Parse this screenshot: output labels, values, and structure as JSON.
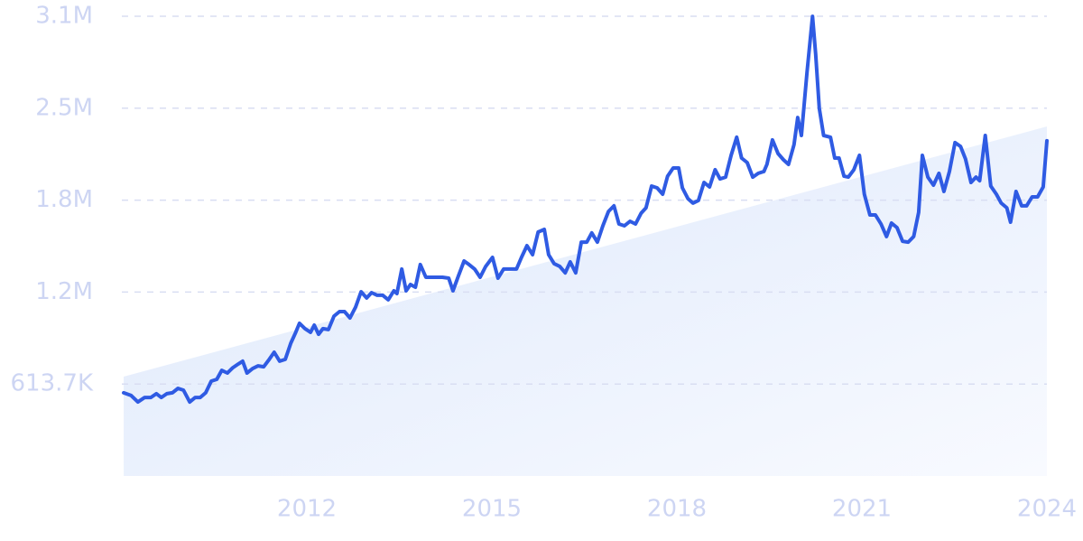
{
  "chart_data": {
    "type": "line",
    "color": "#2f5be3",
    "grid": true,
    "xlim": [
      2009,
      2024
    ],
    "xticks": [
      2012,
      2015,
      2018,
      2021,
      2024
    ],
    "ylim": [
      0,
      3068500
    ],
    "yticks": [
      {
        "value": 613700,
        "label": "613.7K"
      },
      {
        "value": 1227400,
        "label": "1.2M"
      },
      {
        "value": 1841100,
        "label": "1.8M"
      },
      {
        "value": 2454800,
        "label": "2.5M"
      },
      {
        "value": 3068500,
        "label": "3.1M"
      }
    ],
    "trend": {
      "color": "#dde8fb",
      "x": [
        2009.03,
        2024.0
      ],
      "values": [
        663000,
        2333000
      ]
    },
    "x": [
      2009.03,
      2009.15,
      2009.26,
      2009.37,
      2009.47,
      2009.56,
      2009.64,
      2009.73,
      2009.82,
      2009.91,
      2010.0,
      2010.1,
      2010.19,
      2010.27,
      2010.36,
      2010.45,
      2010.54,
      2010.62,
      2010.71,
      2010.8,
      2010.89,
      2010.96,
      2011.03,
      2011.12,
      2011.21,
      2011.3,
      2011.39,
      2011.47,
      2011.56,
      2011.65,
      2011.74,
      2011.82,
      2011.88,
      2011.97,
      2012.06,
      2012.12,
      2012.19,
      2012.26,
      2012.35,
      2012.44,
      2012.53,
      2012.61,
      2012.7,
      2012.79,
      2012.88,
      2012.97,
      2013.05,
      2013.14,
      2013.23,
      2013.32,
      2013.41,
      2013.46,
      2013.54,
      2013.61,
      2013.68,
      2013.76,
      2013.84,
      2013.93,
      2014.05,
      2014.2,
      2014.3,
      2014.37,
      2014.46,
      2014.55,
      2014.63,
      2014.72,
      2014.81,
      2014.9,
      2015.01,
      2015.1,
      2015.19,
      2015.31,
      2015.4,
      2015.48,
      2015.57,
      2015.66,
      2015.75,
      2015.85,
      2015.92,
      2016.01,
      2016.1,
      2016.19,
      2016.27,
      2016.36,
      2016.45,
      2016.54,
      2016.62,
      2016.71,
      2016.8,
      2016.89,
      2016.98,
      2017.06,
      2017.15,
      2017.24,
      2017.33,
      2017.42,
      2017.5,
      2017.59,
      2017.68,
      2017.77,
      2017.85,
      2017.94,
      2018.03,
      2018.09,
      2018.18,
      2018.26,
      2018.35,
      2018.44,
      2018.53,
      2018.62,
      2018.7,
      2018.79,
      2018.88,
      2018.97,
      2019.05,
      2019.14,
      2019.23,
      2019.32,
      2019.41,
      2019.46,
      2019.55,
      2019.64,
      2019.73,
      2019.81,
      2019.9,
      2019.96,
      2020.02,
      2020.11,
      2020.2,
      2020.25,
      2020.31,
      2020.38,
      2020.49,
      2020.56,
      2020.63,
      2020.71,
      2020.78,
      2020.87,
      2020.96,
      2021.04,
      2021.13,
      2021.22,
      2021.31,
      2021.4,
      2021.48,
      2021.57,
      2021.66,
      2021.75,
      2021.84,
      2021.92,
      2021.98,
      2022.07,
      2022.16,
      2022.25,
      2022.33,
      2022.42,
      2022.51,
      2022.6,
      2022.68,
      2022.77,
      2022.85,
      2022.91,
      2023.0,
      2023.09,
      2023.18,
      2023.26,
      2023.35,
      2023.41,
      2023.5,
      2023.59,
      2023.67,
      2023.76,
      2023.85,
      2023.94,
      2024.0
    ],
    "values": [
      555000,
      537000,
      494000,
      524000,
      524000,
      549000,
      524000,
      549000,
      555000,
      585000,
      573000,
      494000,
      524000,
      524000,
      555000,
      633000,
      645000,
      705000,
      687000,
      723000,
      748000,
      766000,
      687000,
      717000,
      735000,
      729000,
      778000,
      826000,
      766000,
      778000,
      886000,
      959000,
      1019000,
      983000,
      959000,
      1007000,
      946000,
      983000,
      977000,
      1067000,
      1097000,
      1097000,
      1055000,
      1127000,
      1230000,
      1188000,
      1224000,
      1206000,
      1206000,
      1176000,
      1236000,
      1218000,
      1381000,
      1236000,
      1278000,
      1260000,
      1411000,
      1326000,
      1326000,
      1326000,
      1320000,
      1236000,
      1338000,
      1435000,
      1411000,
      1381000,
      1326000,
      1399000,
      1459000,
      1320000,
      1381000,
      1381000,
      1381000,
      1459000,
      1537000,
      1477000,
      1628000,
      1646000,
      1477000,
      1417000,
      1399000,
      1356000,
      1429000,
      1356000,
      1561000,
      1561000,
      1622000,
      1561000,
      1670000,
      1766000,
      1803000,
      1682000,
      1670000,
      1700000,
      1682000,
      1754000,
      1790000,
      1935000,
      1923000,
      1881000,
      2001000,
      2056000,
      2056000,
      1923000,
      1851000,
      1821000,
      1839000,
      1959000,
      1929000,
      2044000,
      1983000,
      1995000,
      2140000,
      2261000,
      2122000,
      2092000,
      1995000,
      2020000,
      2032000,
      2080000,
      2243000,
      2152000,
      2110000,
      2080000,
      2212000,
      2393000,
      2273000,
      2695000,
      3068000,
      2815000,
      2454000,
      2273000,
      2261000,
      2122000,
      2122000,
      2001000,
      1995000,
      2044000,
      2140000,
      1881000,
      1742000,
      1742000,
      1682000,
      1598000,
      1688000,
      1658000,
      1567000,
      1561000,
      1598000,
      1760000,
      2140000,
      1995000,
      1941000,
      2020000,
      1899000,
      2032000,
      2225000,
      2200000,
      2116000,
      1959000,
      1995000,
      1971000,
      2273000,
      1935000,
      1881000,
      1821000,
      1790000,
      1694000,
      1899000,
      1803000,
      1803000,
      1863000,
      1863000,
      1929000,
      2237000
    ]
  }
}
